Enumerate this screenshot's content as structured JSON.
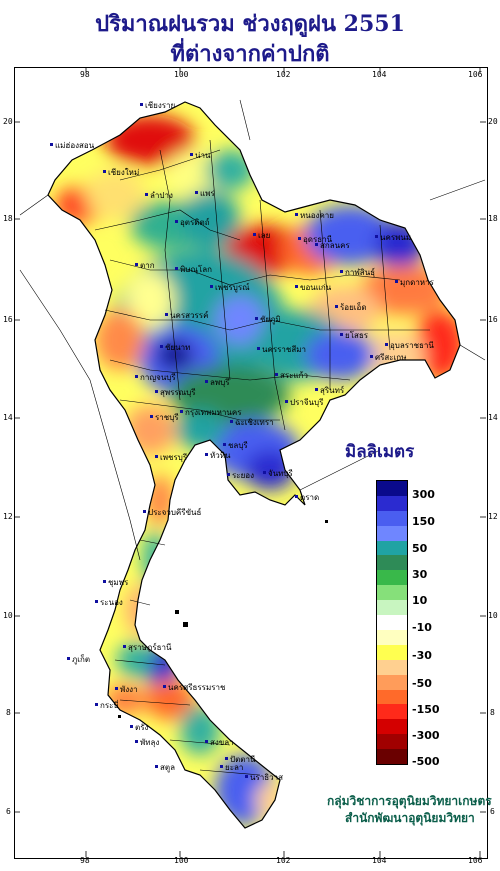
{
  "title_line1": "ปริมาณฝนรวม ช่วงฤดูฝน 2551",
  "title_line2": "ที่ต่างจากค่าปกติ",
  "axes": {
    "lon_ticks": [
      "98",
      "100",
      "102",
      "104",
      "106"
    ],
    "lat_ticks": [
      "20",
      "18",
      "16",
      "14",
      "12",
      "10",
      "8",
      "6"
    ]
  },
  "legend": {
    "title": "มิลลิเมตร",
    "labels": [
      "300",
      "150",
      "50",
      "30",
      "10",
      "-10",
      "-30",
      "-50",
      "-150",
      "-300",
      "-500"
    ],
    "colors": [
      "#0a0a8c",
      "#2b2bd0",
      "#4a5ef0",
      "#6f86ff",
      "#20a3a3",
      "#2e8b57",
      "#39b84a",
      "#86e07a",
      "#c8f5c0",
      "#ffffff",
      "#ffffc0",
      "#ffff50",
      "#ffd090",
      "#ff9c5a",
      "#ff6a2a",
      "#ff2a1a",
      "#d40000",
      "#a00000",
      "#6a0000"
    ]
  },
  "places": [
    "เชียงใหม่",
    "น่าน",
    "แม่ฮ่องสอน",
    "เชียงราย",
    "ลำปาง",
    "แพร่",
    "ตาก",
    "พิษณุโลก",
    "อุดรธานี",
    "หนองคาย",
    "นครพนม",
    "เลย",
    "ขอนแก่น",
    "มุกดาหาร",
    "อุบลราชธานี",
    "นครราชสีมา",
    "สุรินทร์",
    "นครสวรรค์",
    "ลพบุรี",
    "ชัยนาท",
    "กาญจนบุรี",
    "ปราจีนบุรี",
    "ชลบุรี",
    "ระยอง",
    "จันทบุรี",
    "ประจวบคีรีขันธ์",
    "ชุมพร",
    "ระนอง",
    "สุราษฎร์ธานี",
    "ภูเก็ต",
    "นครศรีธรรมราช",
    "กระบี่",
    "ตรัง",
    "สงขลา",
    "ปัตตานี",
    "นราธิวาส",
    "เพชรบุรี",
    "กรุงเทพมหานคร",
    "อุตรดิตถ์",
    "เพชรบูรณ์",
    "ชัยภูมิ",
    "สกลนคร",
    "กาฬสินธุ์",
    "ร้อยเอ็ด",
    "ศรีสะเกษ",
    "ยโสธร",
    "สุพรรณบุรี",
    "ราชบุรี",
    "ฉะเชิงเทรา",
    "สระแก้ว",
    "ตราด",
    "พังงา",
    "พัทลุง",
    "ยะลา",
    "สตูล",
    "หัวหิน"
  ],
  "credit_line1": "กลุ่มวิชาการอุตุนิยมวิทยาเกษตร",
  "credit_line2": "สำนักพัฒนาอุตุนิยมวิทยา"
}
